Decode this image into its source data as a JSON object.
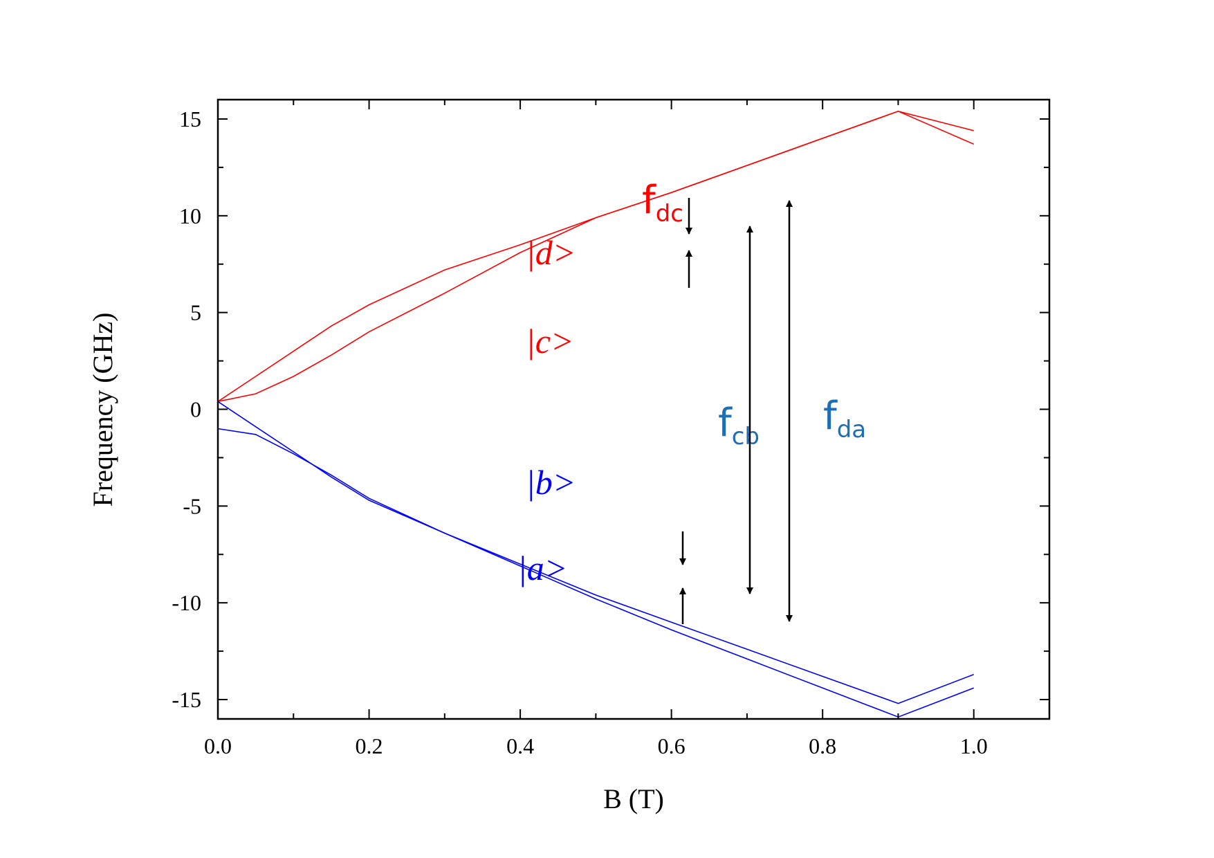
{
  "chart_data": {
    "type": "line",
    "xlabel": "B (T)",
    "ylabel": "Frequency (GHz)",
    "xlim": [
      0.0,
      1.1
    ],
    "ylim": [
      -16,
      16
    ],
    "x_ticks": [
      "0.0",
      "0.2",
      "0.4",
      "0.6",
      "0.8",
      "1.0"
    ],
    "y_ticks": [
      "15",
      "10",
      "5",
      "0",
      "-5",
      "-10",
      "-15"
    ],
    "x": [
      0.0,
      0.05,
      0.1,
      0.15,
      0.2,
      0.3,
      0.4,
      0.5,
      0.6,
      0.7,
      0.8,
      0.9,
      1.0
    ],
    "series": [
      {
        "name": "|d>",
        "color": "#ff0000",
        "values": [
          0.4,
          1.7,
          3.0,
          4.3,
          5.4,
          7.2,
          8.5,
          9.9,
          11.2,
          12.6,
          14.0,
          15.4,
          14.4
        ]
      },
      {
        "name": "|c>",
        "color": "#ff0000",
        "values": [
          0.4,
          0.8,
          1.7,
          2.8,
          4.0,
          6.0,
          8.1,
          9.9,
          11.2,
          12.6,
          14.0,
          15.4,
          13.7
        ]
      },
      {
        "name": "|b>",
        "color": "#0000ff",
        "values": [
          0.4,
          -0.9,
          -2.2,
          -3.5,
          -4.7,
          -6.4,
          -8.0,
          -9.6,
          -11.0,
          -12.4,
          -13.8,
          -15.2,
          -13.7
        ]
      },
      {
        "name": "|a>",
        "color": "#0000ff",
        "values": [
          -1.0,
          -1.3,
          -2.3,
          -3.4,
          -4.6,
          -6.4,
          -8.1,
          -9.8,
          -11.4,
          -12.9,
          -14.4,
          -15.9,
          -14.4
        ]
      }
    ],
    "legend": "none",
    "grid": false
  },
  "labels": {
    "state_d": "|d>",
    "state_c": "|c>",
    "state_b": "|b>",
    "state_a": "|a>",
    "f_dc_main": "f",
    "f_dc_sub": "dc",
    "f_cb_main": "f",
    "f_cb_sub": "cb",
    "f_da_main": "f",
    "f_da_sub": "da"
  },
  "colors": {
    "red": "#ff0000",
    "blue": "#0000ff",
    "label_blue": "#1f6db3",
    "arrow": "#000000"
  }
}
